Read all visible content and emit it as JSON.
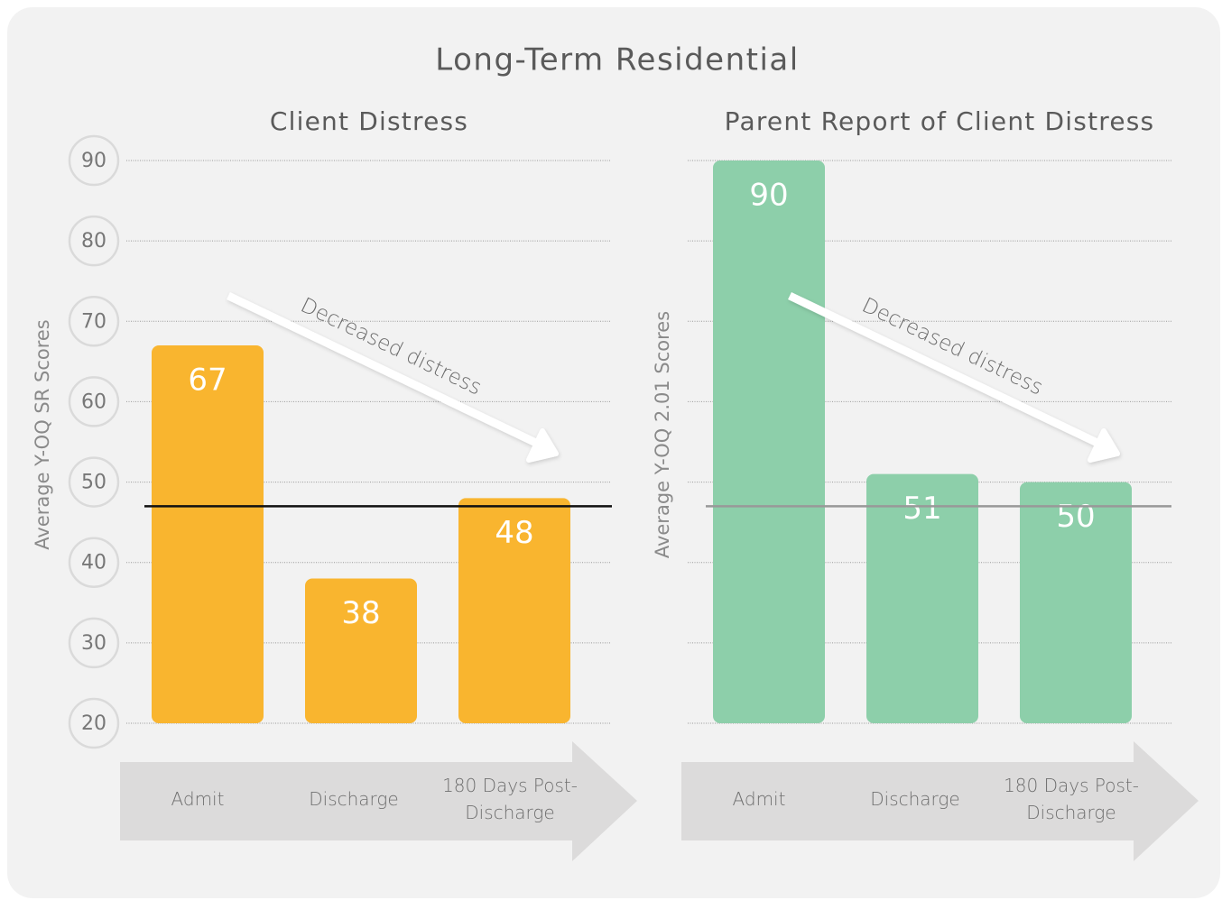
{
  "title": "Long-Term Residential",
  "chart_data": [
    {
      "type": "bar",
      "title": "Client Distress",
      "ylabel": "Average Y-OQ SR Scores",
      "categories": [
        "Admit",
        "Discharge",
        "180 Days Post-Discharge"
      ],
      "values": [
        67,
        38,
        48
      ],
      "color": "#f9b52f",
      "ylim": [
        20,
        90
      ],
      "yticks": [
        20,
        30,
        40,
        50,
        60,
        70,
        80,
        90
      ],
      "show_tick_labels": true,
      "grid": true,
      "reference_line": 47,
      "reference_color": "#111111",
      "annotation": "Decreased distress"
    },
    {
      "type": "bar",
      "title": "Parent Report of Client Distress",
      "ylabel": "Average Y-OQ 2.01 Scores",
      "categories": [
        "Admit",
        "Discharge",
        "180 Days Post-Discharge"
      ],
      "values": [
        90,
        51,
        50
      ],
      "color": "#8dcfaa",
      "ylim": [
        20,
        90
      ],
      "yticks": [
        20,
        30,
        40,
        50,
        60,
        70,
        80,
        90
      ],
      "show_tick_labels": false,
      "grid": true,
      "reference_line": 47,
      "reference_color": "#999999",
      "annotation": "Decreased distress"
    }
  ]
}
